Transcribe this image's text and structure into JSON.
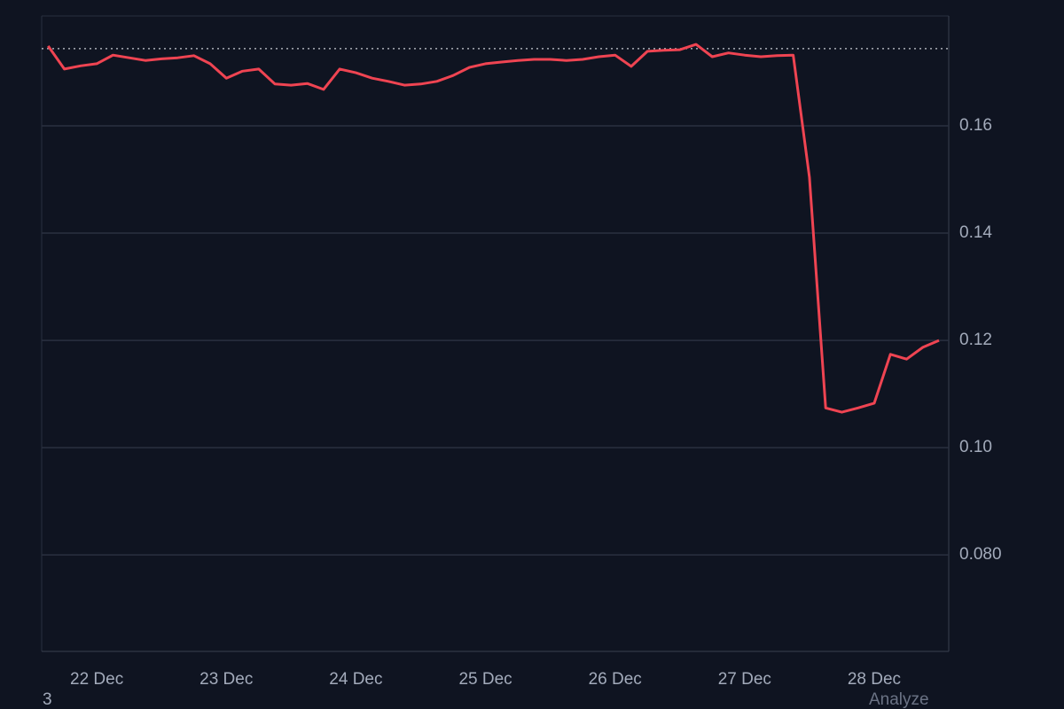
{
  "chart_data": {
    "type": "line",
    "categories": [
      null,
      null,
      null,
      "22 Dec",
      null,
      null,
      null,
      null,
      null,
      null,
      null,
      "23 Dec",
      null,
      null,
      null,
      null,
      null,
      null,
      null,
      "24 Dec",
      null,
      null,
      null,
      null,
      null,
      null,
      null,
      "25 Dec",
      null,
      null,
      null,
      null,
      null,
      null,
      null,
      "26 Dec",
      null,
      null,
      null,
      null,
      null,
      null,
      null,
      "27 Dec",
      null,
      null,
      null,
      null,
      null,
      null,
      null,
      "28 Dec",
      null,
      null,
      null,
      null
    ],
    "values": [
      0.1749,
      0.1706,
      0.1712,
      0.1716,
      0.1732,
      0.1727,
      0.1722,
      0.1725,
      0.1727,
      0.1731,
      0.1716,
      0.1689,
      0.1702,
      0.1706,
      0.1678,
      0.1676,
      0.1679,
      0.1668,
      0.1706,
      0.1699,
      0.1689,
      0.1683,
      0.1676,
      0.1678,
      0.1683,
      0.1694,
      0.1709,
      0.1716,
      0.1719,
      0.1722,
      0.1724,
      0.1724,
      0.1722,
      0.1724,
      0.1729,
      0.1732,
      0.1711,
      0.1739,
      0.1741,
      0.1742,
      0.1752,
      0.1729,
      0.1736,
      0.1732,
      0.1729,
      0.1731,
      0.1732,
      0.1504,
      0.1074,
      0.1066,
      0.1074,
      0.1083,
      0.1174,
      0.1165,
      0.1187,
      0.12
    ],
    "color": "#ef4452",
    "reference_line": 0.1744,
    "ylim": [
      0.062,
      0.1805
    ],
    "yticks": [
      {
        "value": 0.08,
        "label": "0.080"
      },
      {
        "value": 0.1,
        "label": "0.10"
      },
      0.12,
      0.14,
      0.16
    ],
    "grid": true,
    "annotations": [
      "3",
      "Analyze"
    ]
  }
}
